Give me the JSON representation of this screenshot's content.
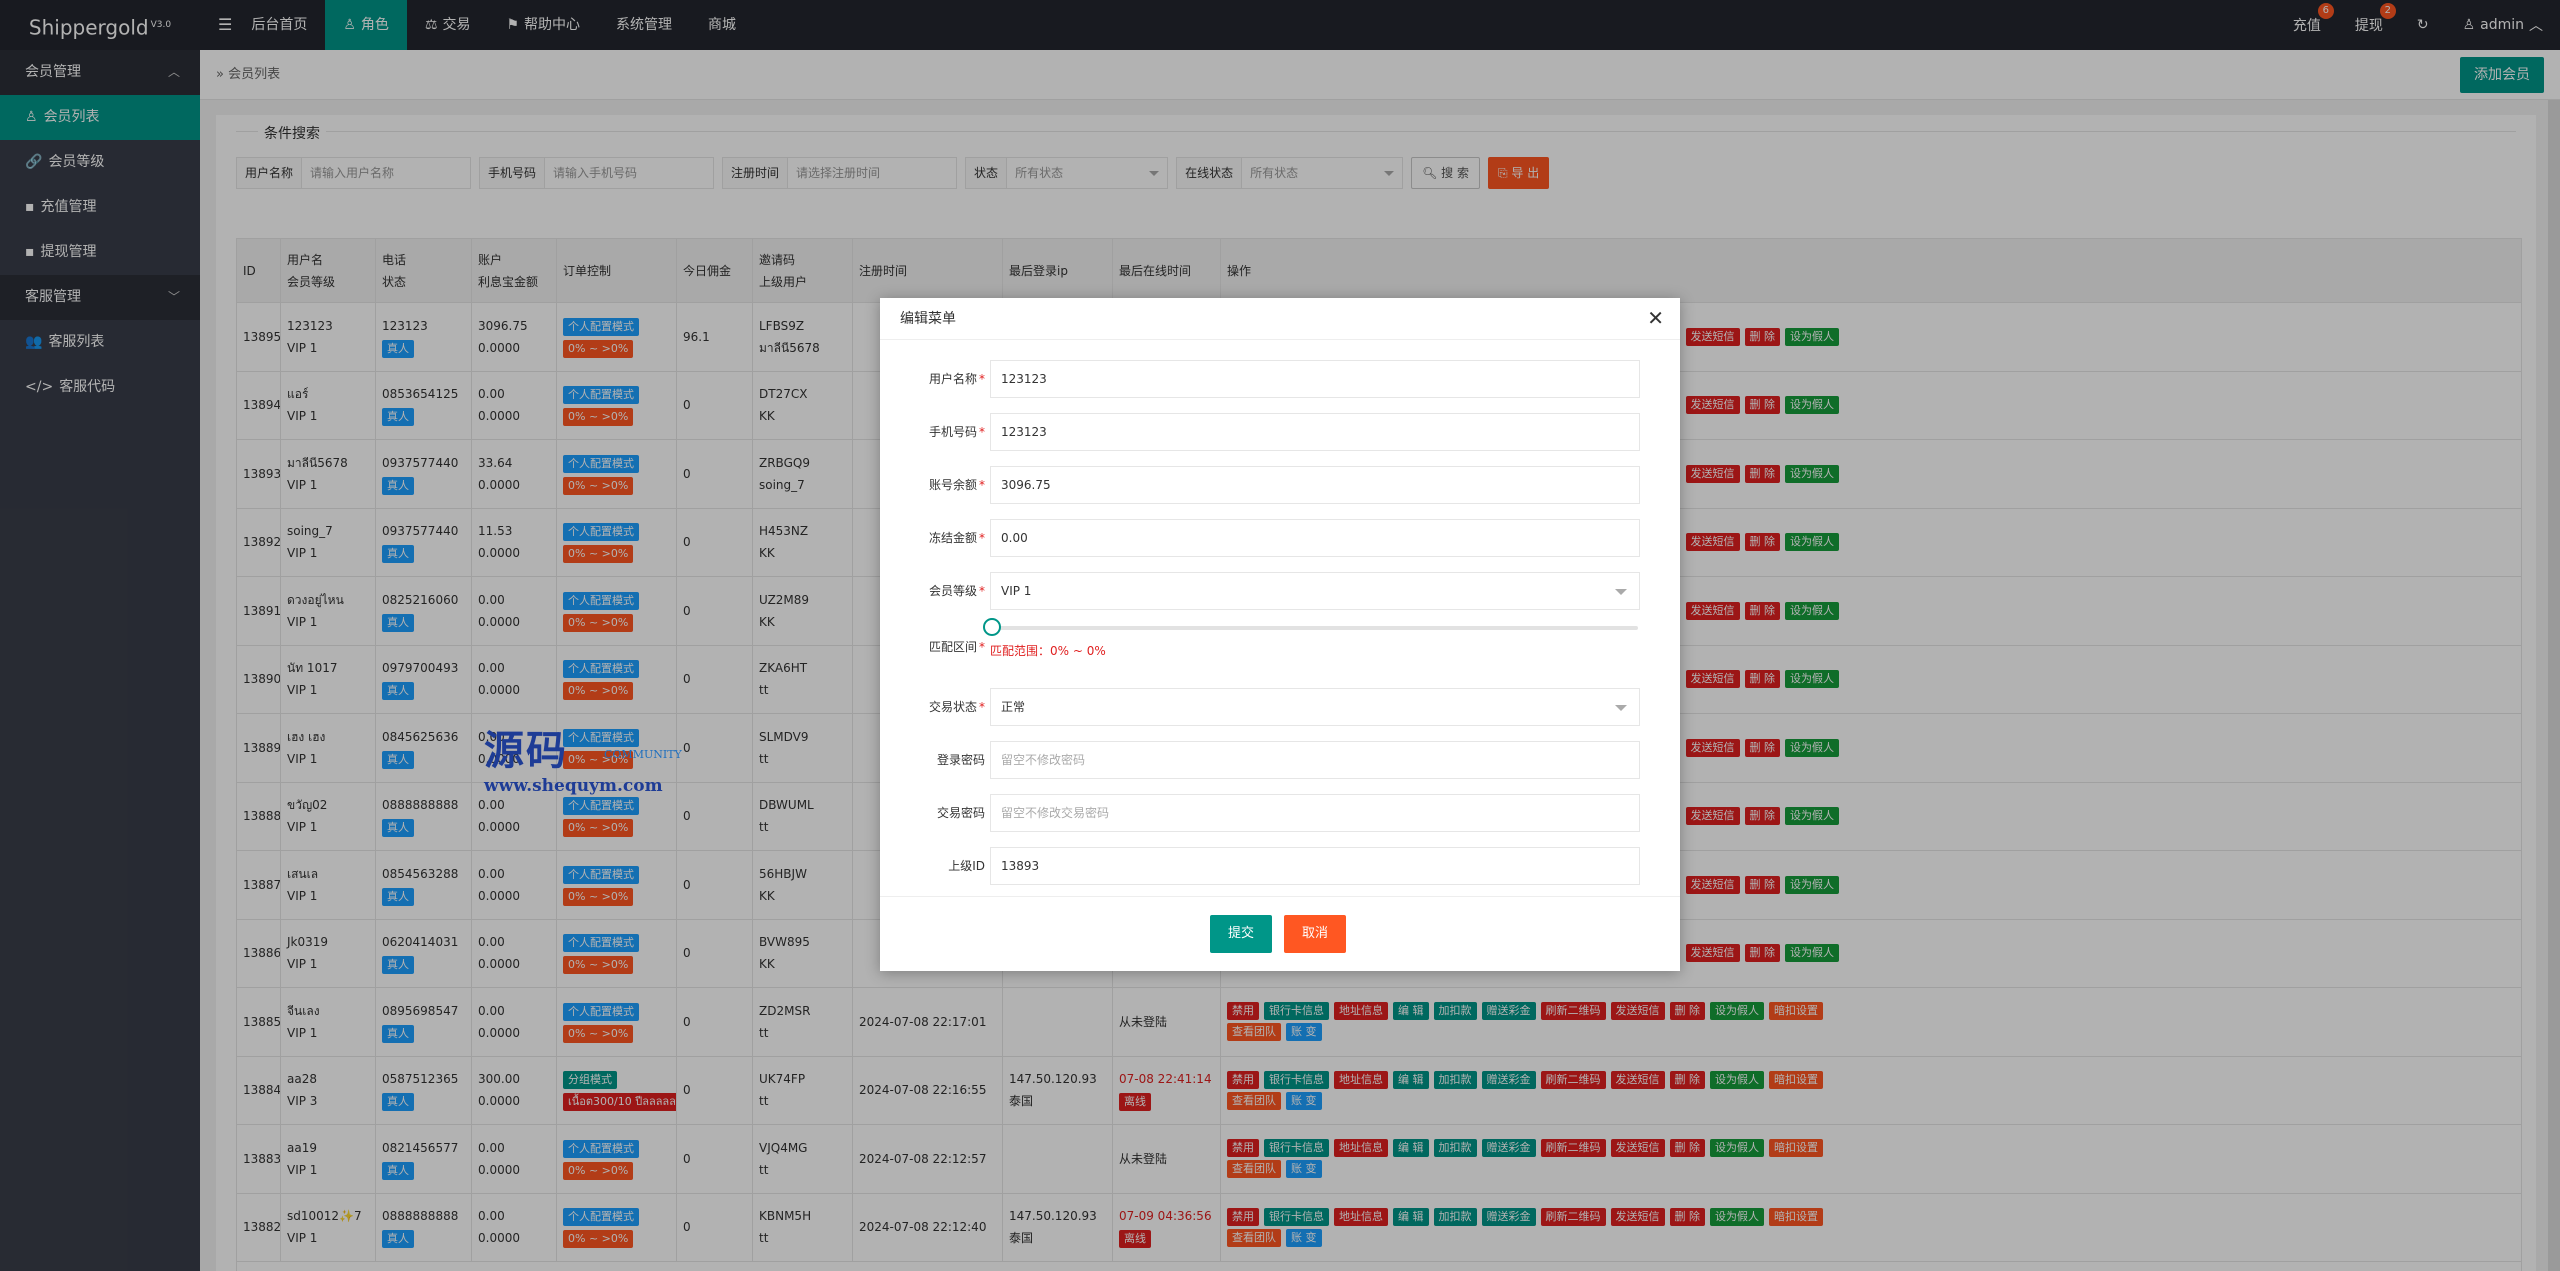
{
  "app": {
    "name": "Shippergold",
    "version": "V3.0"
  },
  "topnav": [
    {
      "label": "后台首页",
      "icon": "",
      "active": false
    },
    {
      "label": "角色",
      "icon": "user-icon",
      "active": true
    },
    {
      "label": "交易",
      "icon": "balance-icon",
      "active": false
    },
    {
      "label": "帮助中心",
      "icon": "flag-icon",
      "active": false
    },
    {
      "label": "系统管理",
      "icon": "",
      "active": false
    },
    {
      "label": "商城",
      "icon": "",
      "active": false
    }
  ],
  "topright": {
    "recharge": "充值",
    "recharge_badge": "6",
    "withdraw": "提现",
    "withdraw_badge": "2",
    "user": "admin"
  },
  "sidebar": {
    "group1": "会员管理",
    "items1": [
      "会员列表",
      "会员等级",
      "充值管理",
      "提现管理"
    ],
    "group2": "客服管理",
    "items2": [
      "客服列表",
      "客服代码"
    ]
  },
  "breadcrumb": "会员列表",
  "add_button": "添加会员",
  "search": {
    "legend": "条件搜索",
    "username_label": "用户名称",
    "username_ph": "请输入用户名称",
    "phone_label": "手机号码",
    "phone_ph": "请输入手机号码",
    "regtime_label": "注册时间",
    "regtime_ph": "请选择注册时间",
    "status_label": "状态",
    "status_value": "所有状态",
    "online_label": "在线状态",
    "online_value": "所有状态",
    "search_btn": "搜 索",
    "export_btn": "导 出"
  },
  "table": {
    "headers": {
      "id": "ID",
      "user1": "用户名",
      "user2": "会员等级",
      "tel1": "电话",
      "tel2": "状态",
      "acc1": "账户",
      "acc2": "利息宝金额",
      "ctl": "订单控制",
      "today": "今日佣金",
      "inv1": "邀请码",
      "inv2": "上级用户",
      "reg": "注册时间",
      "ip": "最后登录ip",
      "last": "最后在线时间",
      "op": "操作"
    },
    "rows": [
      {
        "id": "13895",
        "user": "123123",
        "level": "VIP 1",
        "tel": "123123",
        "status": "真人",
        "bal": "3096.75",
        "interest": "0.0000",
        "mode": "个人配置模式",
        "range": "0% ~ >0%",
        "today": "96.1",
        "code": "LFBS9Z",
        "parent": "มาลีนี5678",
        "reg": "",
        "ip": "",
        "ipc": "",
        "last": "",
        "lastb": ""
      },
      {
        "id": "13894",
        "user": "แอร์",
        "level": "VIP 1",
        "tel": "0853654125",
        "status": "真人",
        "bal": "0.00",
        "interest": "0.0000",
        "mode": "个人配置模式",
        "range": "0% ~ >0%",
        "today": "0",
        "code": "DT27CX",
        "parent": "KK",
        "reg": "",
        "ip": "",
        "ipc": "",
        "last": "",
        "lastb": ""
      },
      {
        "id": "13893",
        "user": "มาลีนี5678",
        "level": "VIP 1",
        "tel": "0937577440",
        "status": "真人",
        "bal": "33.64",
        "interest": "0.0000",
        "mode": "个人配置模式",
        "range": "0% ~ >0%",
        "today": "0",
        "code": "ZRBGQ9",
        "parent": "soing_7",
        "reg": "",
        "ip": "",
        "ipc": "",
        "last": "",
        "lastb": ""
      },
      {
        "id": "13892",
        "user": "soing_7",
        "level": "VIP 1",
        "tel": "0937577440",
        "status": "真人",
        "bal": "11.53",
        "interest": "0.0000",
        "mode": "个人配置模式",
        "range": "0% ~ >0%",
        "today": "0",
        "code": "H453NZ",
        "parent": "KK",
        "reg": "",
        "ip": "",
        "ipc": "",
        "last": "",
        "lastb": ""
      },
      {
        "id": "13891",
        "user": "ดวงอยู่ไหน",
        "level": "VIP 1",
        "tel": "0825216060",
        "status": "真人",
        "bal": "0.00",
        "interest": "0.0000",
        "mode": "个人配置模式",
        "range": "0% ~ >0%",
        "today": "0",
        "code": "UZ2M89",
        "parent": "KK",
        "reg": "",
        "ip": "",
        "ipc": "",
        "last": "",
        "lastb": ""
      },
      {
        "id": "13890",
        "user": "นัท 1017",
        "level": "VIP 1",
        "tel": "0979700493",
        "status": "真人",
        "bal": "0.00",
        "interest": "0.0000",
        "mode": "个人配置模式",
        "range": "0% ~ >0%",
        "today": "0",
        "code": "ZKA6HT",
        "parent": "tt",
        "reg": "",
        "ip": "",
        "ipc": "",
        "last": "",
        "lastb": ""
      },
      {
        "id": "13889",
        "user": "เฮง เฮง",
        "level": "VIP 1",
        "tel": "0845625636",
        "status": "真人",
        "bal": "0.00",
        "interest": "0.0000",
        "mode": "个人配置模式",
        "range": "0% ~ >0%",
        "today": "0",
        "code": "SLMDV9",
        "parent": "tt",
        "reg": "",
        "ip": "",
        "ipc": "",
        "last": "",
        "lastb": ""
      },
      {
        "id": "13888",
        "user": "ขวัญ02",
        "level": "VIP 1",
        "tel": "0888888888",
        "status": "真人",
        "bal": "0.00",
        "interest": "0.0000",
        "mode": "个人配置模式",
        "range": "0% ~ >0%",
        "today": "0",
        "code": "DBWUML",
        "parent": "tt",
        "reg": "",
        "ip": "",
        "ipc": "",
        "last": "",
        "lastb": ""
      },
      {
        "id": "13887",
        "user": "เสนเล",
        "level": "VIP 1",
        "tel": "0854563288",
        "status": "真人",
        "bal": "0.00",
        "interest": "0.0000",
        "mode": "个人配置模式",
        "range": "0% ~ >0%",
        "today": "0",
        "code": "56HBJW",
        "parent": "KK",
        "reg": "",
        "ip": "",
        "ipc": "",
        "last": "",
        "lastb": ""
      },
      {
        "id": "13886",
        "user": "Jk0319",
        "level": "VIP 1",
        "tel": "0620414031",
        "status": "真人",
        "bal": "0.00",
        "interest": "0.0000",
        "mode": "个人配置模式",
        "range": "0% ~ >0%",
        "today": "0",
        "code": "BVW895",
        "parent": "KK",
        "reg": "",
        "ip": "",
        "ipc": "",
        "last": "",
        "lastb": ""
      },
      {
        "id": "13885",
        "user": "จีนเลง",
        "level": "VIP 1",
        "tel": "0895698547",
        "status": "真人",
        "bal": "0.00",
        "interest": "0.0000",
        "mode": "个人配置模式",
        "range": "0% ~ >0%",
        "today": "0",
        "code": "ZD2MSR",
        "parent": "tt",
        "reg": "2024-07-08 22:17:01",
        "ip": "",
        "ipc": "",
        "last": "从未登陆",
        "lastb": ""
      },
      {
        "id": "13884",
        "user": "aa28",
        "level": "VIP 3",
        "tel": "0587512365",
        "status": "真人",
        "bal": "300.00",
        "interest": "0.0000",
        "mode": "分组模式",
        "range": "เนื้อต300/10 ปีลลลลลลลล",
        "today": "0",
        "code": "UK74FP",
        "parent": "tt",
        "reg": "2024-07-08 22:16:55",
        "ip": "147.50.120.93",
        "ipc": "泰国",
        "last": "07-08 22:41:14",
        "lastb": "离线"
      },
      {
        "id": "13883",
        "user": "aa19",
        "level": "VIP 1",
        "tel": "0821456577",
        "status": "真人",
        "bal": "0.00",
        "interest": "0.0000",
        "mode": "个人配置模式",
        "range": "0% ~ >0%",
        "today": "0",
        "code": "VJQ4MG",
        "parent": "tt",
        "reg": "2024-07-08 22:12:57",
        "ip": "",
        "ipc": "",
        "last": "从未登陆",
        "lastb": ""
      },
      {
        "id": "13882",
        "user": "sd10012✨7",
        "level": "VIP 1",
        "tel": "0888888888",
        "status": "真人",
        "bal": "0.00",
        "interest": "0.0000",
        "mode": "个人配置模式",
        "range": "0% ~ >0%",
        "today": "0",
        "code": "KBNM5H",
        "parent": "tt",
        "reg": "2024-07-08 22:12:40",
        "ip": "147.50.120.93",
        "ipc": "泰国",
        "last": "07-09 04:36:56",
        "lastb": "离线"
      }
    ],
    "ops": {
      "disable": "禁用",
      "bank": "银行卡信息",
      "address": "地址信息",
      "edit": "编 辑",
      "deduct": "加扣款",
      "gift": "赠送彩金",
      "qrcode": "刷新二维码",
      "sms": "发送短信",
      "delete": "删 除",
      "fake": "设为假人",
      "lock": "暗扣设置",
      "team": "查看团队",
      "account": "账 变"
    }
  },
  "modal": {
    "title": "编辑菜单",
    "username_label": "用户名称",
    "username": "123123",
    "phone_label": "手机号码",
    "phone": "123123",
    "balance_label": "账号余额",
    "balance": "3096.75",
    "frozen_label": "冻结金额",
    "frozen": "0.00",
    "level_label": "会员等级",
    "level": "VIP 1",
    "range_label": "匹配区间",
    "range_text": "匹配范围：0% ~ 0%",
    "trade_label": "交易状态",
    "trade": "正常",
    "loginpw_label": "登录密码",
    "loginpw_ph": "留空不修改密码",
    "tradepw_label": "交易密码",
    "tradepw_ph": "留空不修改交易密码",
    "parent_label": "上级ID",
    "parent": "13893",
    "submit": "提交",
    "cancel": "取消"
  },
  "watermark": {
    "main": "源码",
    "sub": "COMMUNITY",
    "url": "www.shequym.com"
  }
}
